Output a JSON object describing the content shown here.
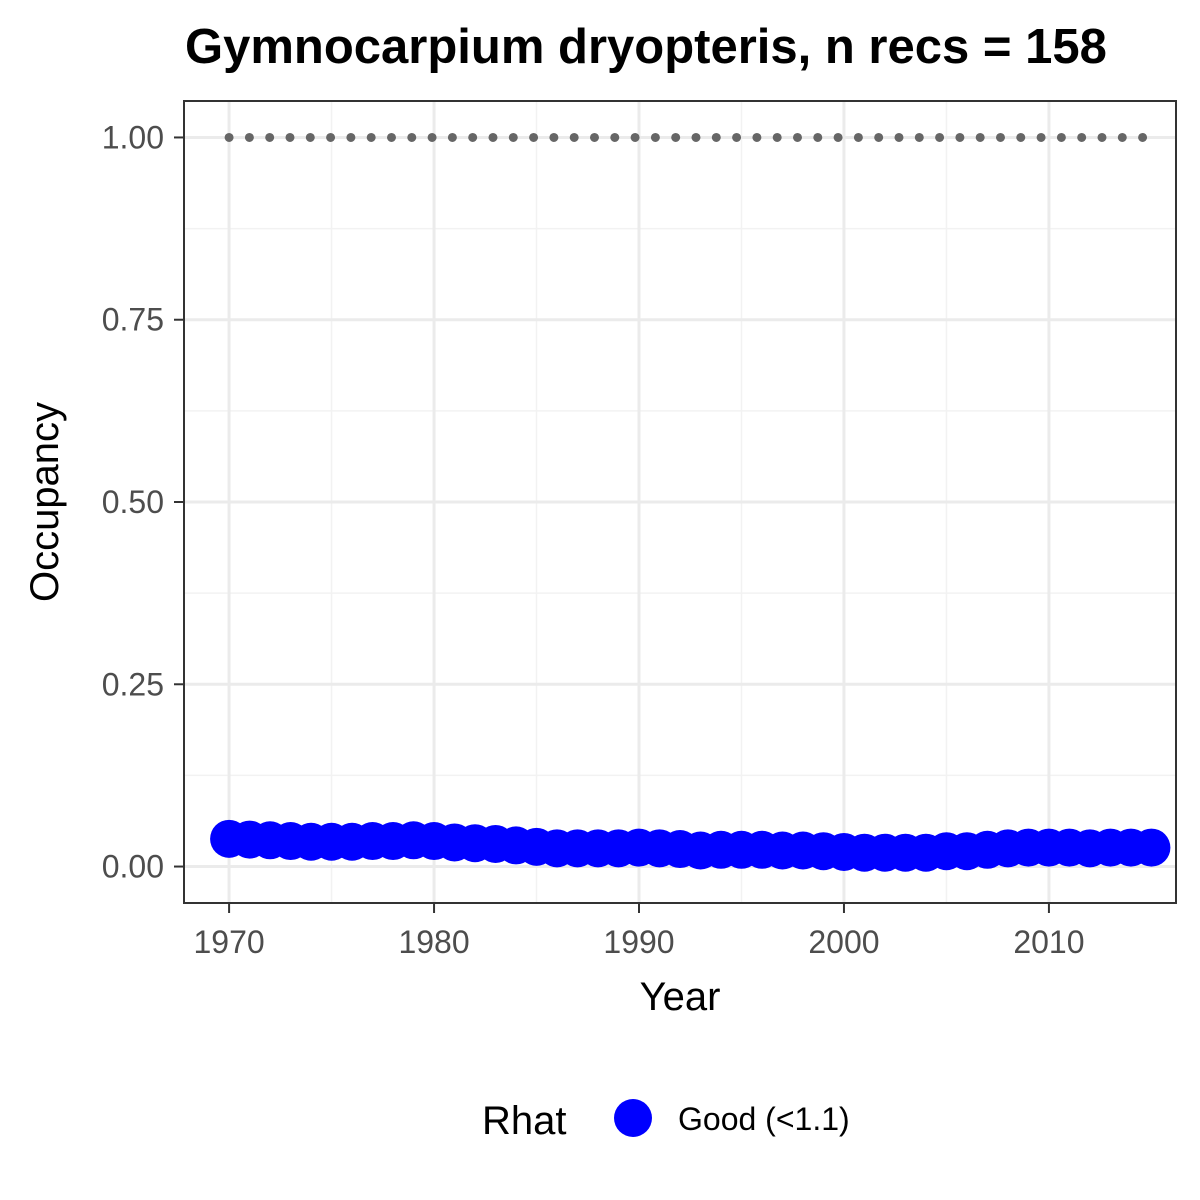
{
  "chart_data": {
    "type": "scatter",
    "title": "Gymnocarpium dryopteris, n recs = 158",
    "xlabel": "Year",
    "ylabel": "Occupancy",
    "xlim": [
      1967.8,
      2016.2
    ],
    "ylim": [
      -0.05,
      1.05
    ],
    "xticks": [
      1970,
      1980,
      1990,
      2000,
      2010
    ],
    "xtick_labels": [
      "1970",
      "1980",
      "1990",
      "2000",
      "2010"
    ],
    "yticks": [
      0,
      0.25,
      0.5,
      0.75,
      1.0
    ],
    "ytick_labels": [
      "0.00",
      "0.25",
      "0.50",
      "0.75",
      "1.00"
    ],
    "grid": true,
    "legend": {
      "title": "Rhat",
      "placement": "bottom",
      "entries": [
        {
          "label": "Good (<1.1)",
          "color": "#0000ff"
        }
      ]
    },
    "series": [
      {
        "name": "Good (<1.1)",
        "color": "#0000ff",
        "x": [
          1970,
          1971,
          1972,
          1973,
          1974,
          1975,
          1976,
          1977,
          1978,
          1979,
          1980,
          1981,
          1982,
          1983,
          1984,
          1985,
          1986,
          1987,
          1988,
          1989,
          1990,
          1991,
          1992,
          1993,
          1994,
          1995,
          1996,
          1997,
          1998,
          1999,
          2000,
          2001,
          2002,
          2003,
          2004,
          2005,
          2006,
          2007,
          2008,
          2009,
          2010,
          2011,
          2012,
          2013,
          2014,
          2015
        ],
        "y": [
          0.038,
          0.037,
          0.036,
          0.035,
          0.034,
          0.034,
          0.034,
          0.035,
          0.035,
          0.036,
          0.035,
          0.033,
          0.032,
          0.031,
          0.029,
          0.027,
          0.025,
          0.025,
          0.025,
          0.025,
          0.026,
          0.025,
          0.024,
          0.022,
          0.023,
          0.023,
          0.023,
          0.022,
          0.022,
          0.021,
          0.02,
          0.019,
          0.019,
          0.019,
          0.019,
          0.021,
          0.021,
          0.023,
          0.025,
          0.026,
          0.026,
          0.026,
          0.025,
          0.026,
          0.026,
          0.026
        ]
      }
    ],
    "reference_line": {
      "y": 1.0,
      "style": "dotted",
      "color": "#666666",
      "x_from": 1970,
      "x_to": 2015
    }
  }
}
